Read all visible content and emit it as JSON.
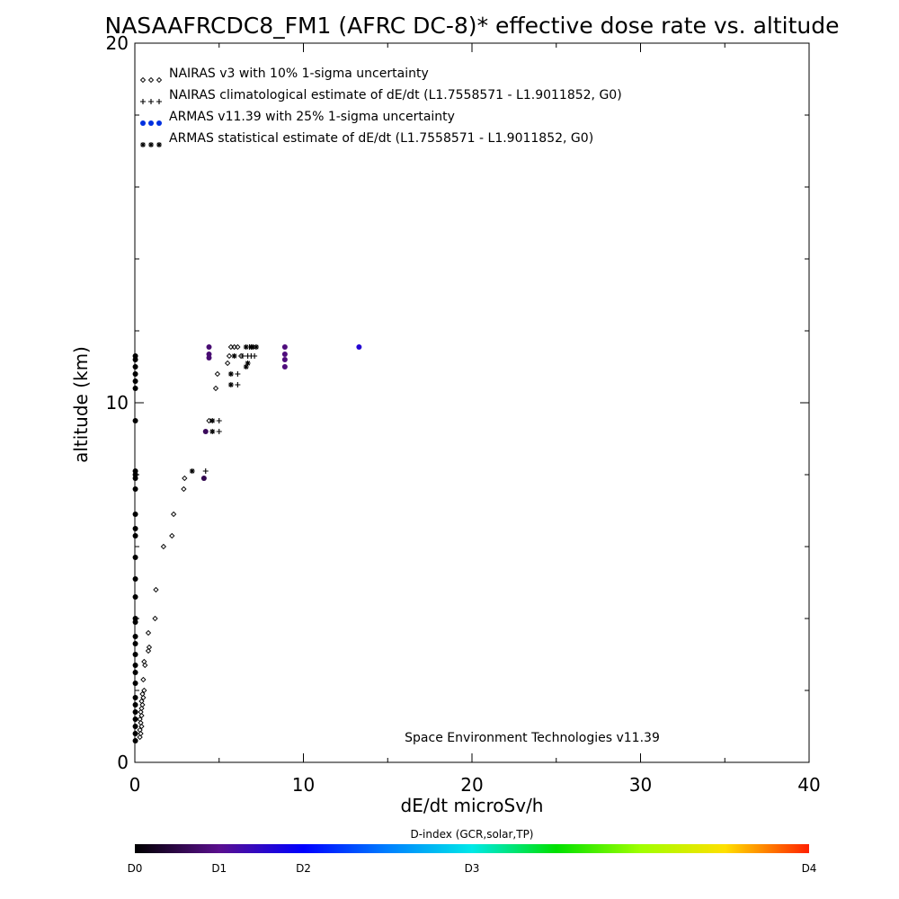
{
  "chart_data": {
    "type": "scatter",
    "title": "NASAAFRCDC8_FM1 (AFRC DC-8)* effective dose rate vs. altitude",
    "xlabel": "dE/dt microSv/h",
    "ylabel": "altitude (km)",
    "xlim": [
      0,
      40
    ],
    "ylim": [
      0,
      20
    ],
    "x_ticks": [
      "0",
      "10",
      "20",
      "30",
      "40"
    ],
    "y_ticks": [
      "0",
      "10",
      "20"
    ],
    "grid": false,
    "legend_position": "top-left",
    "annotation": "Space Environment Technologies v11.39",
    "colorbar": {
      "title": "D-index (GCR,solar,TP)",
      "labels": [
        {
          "text": "D0",
          "pos": 0
        },
        {
          "text": "D1",
          "pos": 0.125
        },
        {
          "text": "D2",
          "pos": 0.25
        },
        {
          "text": "D3",
          "pos": 0.5
        },
        {
          "text": "D4",
          "pos": 1.0
        }
      ]
    },
    "series": [
      {
        "name": "NAIRAS v3 with 10% 1-sigma uncertainty",
        "marker": "diamond",
        "color": "#000000",
        "points": [
          [
            0.3,
            0.7
          ],
          [
            0.35,
            0.8
          ],
          [
            0.3,
            0.9
          ],
          [
            0.4,
            1.0
          ],
          [
            0.35,
            1.1
          ],
          [
            0.3,
            1.2
          ],
          [
            0.4,
            1.3
          ],
          [
            0.35,
            1.4
          ],
          [
            0.4,
            1.5
          ],
          [
            0.45,
            1.6
          ],
          [
            0.4,
            1.7
          ],
          [
            0.5,
            1.8
          ],
          [
            0.45,
            1.9
          ],
          [
            0.55,
            2.0
          ],
          [
            0.5,
            2.3
          ],
          [
            0.6,
            2.7
          ],
          [
            0.55,
            2.8
          ],
          [
            0.8,
            3.1
          ],
          [
            0.85,
            3.2
          ],
          [
            0.8,
            3.6
          ],
          [
            1.2,
            4.0
          ],
          [
            1.25,
            4.8
          ],
          [
            1.7,
            6.0
          ],
          [
            2.2,
            6.3
          ],
          [
            2.3,
            6.9
          ],
          [
            2.9,
            7.6
          ],
          [
            2.95,
            7.9
          ],
          [
            4.4,
            9.5
          ],
          [
            4.8,
            10.4
          ],
          [
            4.9,
            10.8
          ],
          [
            5.5,
            11.1
          ],
          [
            5.6,
            11.3
          ],
          [
            5.7,
            11.55
          ],
          [
            5.9,
            11.55
          ],
          [
            6.1,
            11.55
          ],
          [
            6.3,
            11.3
          ]
        ]
      },
      {
        "name": "NAIRAS climatological estimate of dE/dt (L1.7558571 - L1.9011852, G0)",
        "marker": "plus",
        "color": "#000000",
        "points": [
          [
            4.2,
            8.1
          ],
          [
            5.0,
            9.5
          ],
          [
            5.0,
            9.2
          ],
          [
            6.1,
            10.5
          ],
          [
            6.1,
            10.8
          ],
          [
            6.4,
            11.3
          ],
          [
            6.7,
            11.3
          ],
          [
            6.9,
            11.3
          ],
          [
            7.1,
            11.3
          ],
          [
            6.8,
            11.55
          ],
          [
            7.0,
            11.55
          ],
          [
            7.2,
            11.55
          ]
        ]
      },
      {
        "name": "ARMAS v11.39 with 25% 1-sigma uncertainty",
        "marker": "dot",
        "color": "#0000ff",
        "points": [
          [
            13.3,
            11.55,
            0.2
          ],
          [
            4.4,
            11.55,
            0.1
          ],
          [
            4.4,
            11.35,
            0.1
          ],
          [
            4.4,
            11.25,
            0.1
          ],
          [
            8.9,
            11.55,
            0.11
          ],
          [
            8.9,
            11.35,
            0.11
          ],
          [
            8.9,
            11.2,
            0.11
          ],
          [
            8.9,
            11.0,
            0.11
          ],
          [
            4.2,
            9.2,
            0.08
          ],
          [
            4.1,
            7.9,
            0.07
          ]
        ]
      },
      {
        "name": "ARMAS statistical estimate of dE/dt (L1.7558571 - L1.9011852, G0)",
        "marker": "asterisk",
        "color": "#000000",
        "points": [
          [
            3.4,
            8.1
          ],
          [
            4.6,
            9.5
          ],
          [
            4.6,
            9.2
          ],
          [
            5.7,
            10.5
          ],
          [
            5.7,
            10.8
          ],
          [
            5.9,
            11.3
          ],
          [
            6.6,
            11.0
          ],
          [
            6.7,
            11.1
          ],
          [
            6.6,
            11.55
          ],
          [
            6.9,
            11.55
          ],
          [
            7.0,
            11.55
          ],
          [
            7.2,
            11.55
          ]
        ]
      },
      {
        "name": "",
        "marker": "dot",
        "color": "#000000",
        "points": [
          [
            0.03,
            0.6,
            0
          ],
          [
            0.03,
            0.8,
            0
          ],
          [
            0.03,
            1.0,
            0
          ],
          [
            0.03,
            1.2,
            0
          ],
          [
            0.03,
            1.4,
            0
          ],
          [
            0.03,
            1.6,
            0
          ],
          [
            0.03,
            1.8,
            0
          ],
          [
            0.03,
            2.2,
            0
          ],
          [
            0.03,
            2.5,
            0
          ],
          [
            0.03,
            2.7,
            0
          ],
          [
            0.03,
            3.0,
            0
          ],
          [
            0.03,
            3.3,
            0
          ],
          [
            0.03,
            3.5,
            0
          ],
          [
            0.03,
            3.9,
            0
          ],
          [
            0.03,
            4.0,
            0
          ],
          [
            0.03,
            4.6,
            0
          ],
          [
            0.03,
            5.1,
            0
          ],
          [
            0.03,
            5.7,
            0
          ],
          [
            0.03,
            6.3,
            0
          ],
          [
            0.03,
            6.5,
            0
          ],
          [
            0.03,
            6.9,
            0
          ],
          [
            0.03,
            7.6,
            0
          ],
          [
            0.03,
            7.9,
            0
          ],
          [
            0.03,
            8.0,
            0
          ],
          [
            0.03,
            8.1,
            0
          ],
          [
            0.03,
            9.5,
            0
          ],
          [
            0.03,
            10.4,
            0
          ],
          [
            0.03,
            10.6,
            0
          ],
          [
            0.03,
            10.8,
            0
          ],
          [
            0.03,
            11.0,
            0
          ],
          [
            0.03,
            11.2,
            0
          ],
          [
            0.03,
            11.3,
            0
          ]
        ]
      }
    ]
  }
}
